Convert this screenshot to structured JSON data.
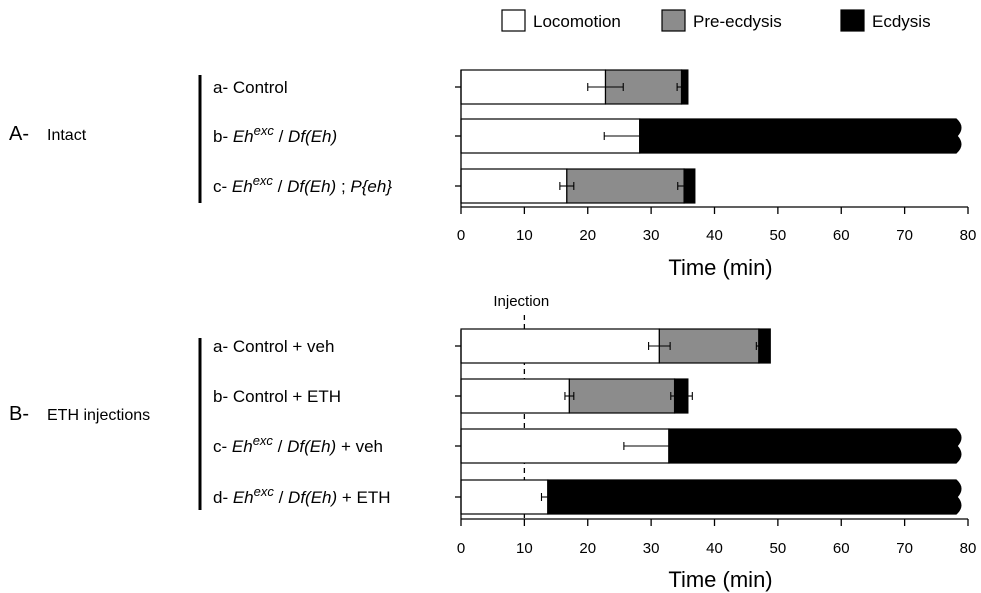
{
  "legend": [
    {
      "label": "Locomotion",
      "color": "#ffffff"
    },
    {
      "label": "Pre-ecdysis",
      "color": "#8c8c8c"
    },
    {
      "label": "Ecdysis",
      "color": "#000000"
    }
  ],
  "chart_data": [
    {
      "type": "bar",
      "orientation": "horizontal",
      "stacked": true,
      "panel_letter": "A-",
      "panel_title": "Intact",
      "xlabel": "Time (min)",
      "xlim": [
        0,
        80
      ],
      "xticks": [
        0,
        10,
        20,
        30,
        40,
        50,
        60,
        70,
        80
      ],
      "categories": [
        {
          "prefix": "a-",
          "parts": [
            {
              "t": "Control"
            }
          ]
        },
        {
          "prefix": "b-",
          "parts": [
            {
              "t": "Eh",
              "i": true
            },
            {
              "t": "exc",
              "i": true,
              "sup": true
            },
            {
              "t": " / "
            },
            {
              "t": "Df(Eh)",
              "i": true
            }
          ]
        },
        {
          "prefix": "c-",
          "parts": [
            {
              "t": "Eh",
              "i": true
            },
            {
              "t": "exc",
              "i": true,
              "sup": true
            },
            {
              "t": " / "
            },
            {
              "t": "Df(Eh)",
              "i": true
            },
            {
              "t": " ; "
            },
            {
              "t": "P{eh}",
              "i": true
            }
          ]
        }
      ],
      "series": [
        {
          "name": "Locomotion",
          "values": [
            22.8,
            28.2,
            16.7
          ],
          "errors": [
            2.8,
            5.6,
            1.1
          ]
        },
        {
          "name": "Pre-ecdysis",
          "values": [
            12.0,
            0,
            18.5
          ],
          "errors": [
            0.7,
            0,
            1.0
          ]
        },
        {
          "name": "Ecdysis",
          "values": [
            1.0,
            50.4,
            1.7
          ],
          "errors": [
            0,
            0,
            0
          ]
        }
      ],
      "truncated": [
        false,
        true,
        false
      ]
    },
    {
      "type": "bar",
      "orientation": "horizontal",
      "stacked": true,
      "panel_letter": "B-",
      "panel_title": "ETH injections",
      "xlabel": "Time (min)",
      "xlim": [
        0,
        80
      ],
      "xticks": [
        0,
        10,
        20,
        30,
        40,
        50,
        60,
        70,
        80
      ],
      "annotation": {
        "label": "Injection",
        "x": 10
      },
      "categories": [
        {
          "prefix": "a-",
          "parts": [
            {
              "t": "Control + veh"
            }
          ]
        },
        {
          "prefix": "b-",
          "parts": [
            {
              "t": "Control + ETH"
            }
          ]
        },
        {
          "prefix": "c-",
          "parts": [
            {
              "t": "Eh",
              "i": true
            },
            {
              "t": "exc",
              "i": true,
              "sup": true
            },
            {
              "t": " / "
            },
            {
              "t": "Df(Eh)",
              "i": true
            },
            {
              "t": "  + veh"
            }
          ]
        },
        {
          "prefix": "d-",
          "parts": [
            {
              "t": "Eh",
              "i": true
            },
            {
              "t": "exc",
              "i": true,
              "sup": true
            },
            {
              "t": " / "
            },
            {
              "t": "Df(Eh)",
              "i": true
            },
            {
              "t": "  + ETH"
            }
          ]
        }
      ],
      "series": [
        {
          "name": "Locomotion",
          "values": [
            31.3,
            17.1,
            32.8,
            13.7
          ],
          "errors": [
            1.7,
            0.7,
            7.1,
            1.0
          ]
        },
        {
          "name": "Pre-ecdysis",
          "values": [
            15.7,
            16.6,
            0,
            0
          ],
          "errors": [
            0.4,
            0.6,
            0,
            0
          ]
        },
        {
          "name": "Ecdysis",
          "values": [
            1.8,
            2.1,
            45.8,
            64.9
          ],
          "errors": [
            0,
            0.7,
            0,
            0
          ]
        }
      ],
      "truncated": [
        false,
        false,
        true,
        true
      ]
    }
  ]
}
